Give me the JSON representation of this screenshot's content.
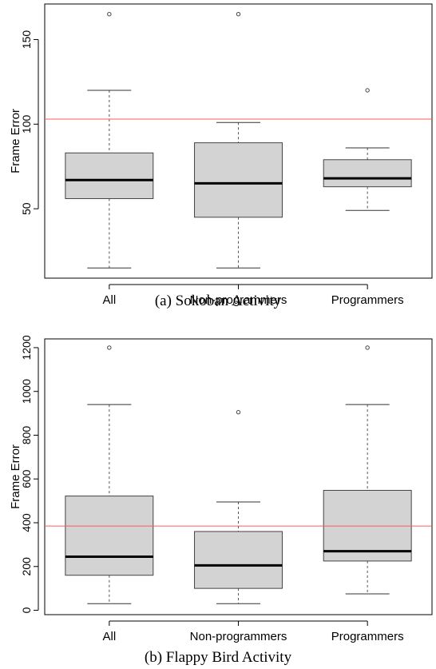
{
  "chart_data": [
    {
      "type": "box",
      "caption": "(a) Sokoban Activity",
      "ylabel": "Frame Error",
      "xlabel": "",
      "categories": [
        "All",
        "Non-programmers",
        "Programmers"
      ],
      "yticks": [
        50,
        100,
        150
      ],
      "ylim": [
        9,
        171
      ],
      "reference_line": 103,
      "reference_color": "#ff5a5a",
      "box_fill": "#d3d3d3",
      "boxes": [
        {
          "name": "All",
          "whisker_low": 15,
          "q1": 56,
          "median": 67,
          "q3": 83,
          "whisker_high": 120,
          "outliers": [
            165
          ]
        },
        {
          "name": "Non-programmers",
          "whisker_low": 15,
          "q1": 45,
          "median": 65,
          "q3": 89,
          "whisker_high": 101,
          "outliers": [
            165
          ]
        },
        {
          "name": "Programmers",
          "whisker_low": 49,
          "q1": 63,
          "median": 68,
          "q3": 79,
          "whisker_high": 86,
          "outliers": [
            120
          ]
        }
      ]
    },
    {
      "type": "box",
      "caption": "(b) Flappy Bird Activity",
      "ylabel": "Frame Error",
      "xlabel": "",
      "categories": [
        "All",
        "Non-programmers",
        "Programmers"
      ],
      "yticks": [
        0,
        200,
        400,
        600,
        800,
        1000,
        1200
      ],
      "ylim": [
        -20,
        1240
      ],
      "reference_line": 385,
      "reference_color": "#ff5a5a",
      "box_fill": "#d3d3d3",
      "boxes": [
        {
          "name": "All",
          "whisker_low": 30,
          "q1": 160,
          "median": 245,
          "q3": 522,
          "whisker_high": 940,
          "outliers": [
            1200
          ]
        },
        {
          "name": "Non-programmers",
          "whisker_low": 30,
          "q1": 100,
          "median": 205,
          "q3": 360,
          "whisker_high": 495,
          "outliers": [
            905
          ]
        },
        {
          "name": "Programmers",
          "whisker_low": 75,
          "q1": 225,
          "median": 270,
          "q3": 548,
          "whisker_high": 940,
          "outliers": [
            1200
          ]
        }
      ]
    }
  ]
}
